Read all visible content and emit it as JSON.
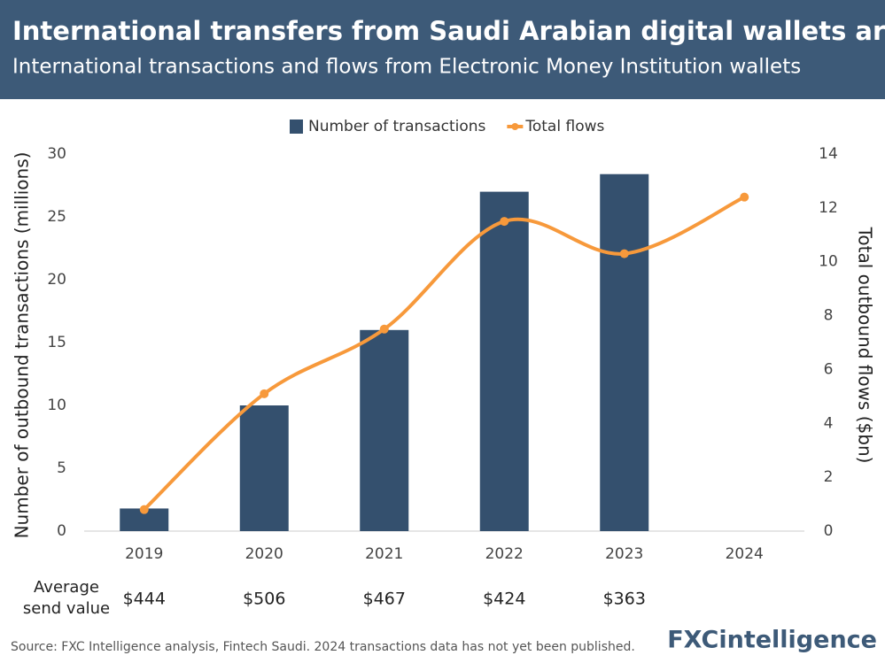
{
  "chart_data": {
    "type": "bar",
    "title": "International transfers from Saudi Arabian digital wallets are rising",
    "subtitle": "International transactions and flows from Electronic Money Institution wallets",
    "categories": [
      "2019",
      "2020",
      "2021",
      "2022",
      "2023",
      "2024"
    ],
    "series": [
      {
        "name": "Number of transactions",
        "type": "bar",
        "color": "#34506e",
        "values": [
          1.8,
          10,
          16,
          27,
          28.4,
          null
        ]
      },
      {
        "name": "Total flows",
        "type": "line",
        "axis": "y2",
        "color": "#f7993b",
        "values": [
          0.8,
          5.1,
          7.5,
          11.5,
          10.3,
          12.4
        ]
      }
    ],
    "ylabel": "Number of outbound transactions (millions)",
    "y2label": "Total outbound flows ($bn)",
    "ylim": [
      0,
      30
    ],
    "yticks": [
      0,
      5,
      10,
      15,
      20,
      25,
      30
    ],
    "y2lim": [
      0,
      14
    ],
    "y2ticks": [
      0,
      2,
      4,
      6,
      8,
      10,
      12,
      14
    ],
    "grid": false,
    "legend": "top"
  },
  "table": {
    "label": "Average send value",
    "values": [
      "$444",
      "$506",
      "$467",
      "$424",
      "$363",
      null
    ]
  },
  "source": "Source: FXC Intelligence analysis, Fintech Saudi. 2024 transactions data has not yet been published.",
  "logo": "FXCintelligence"
}
